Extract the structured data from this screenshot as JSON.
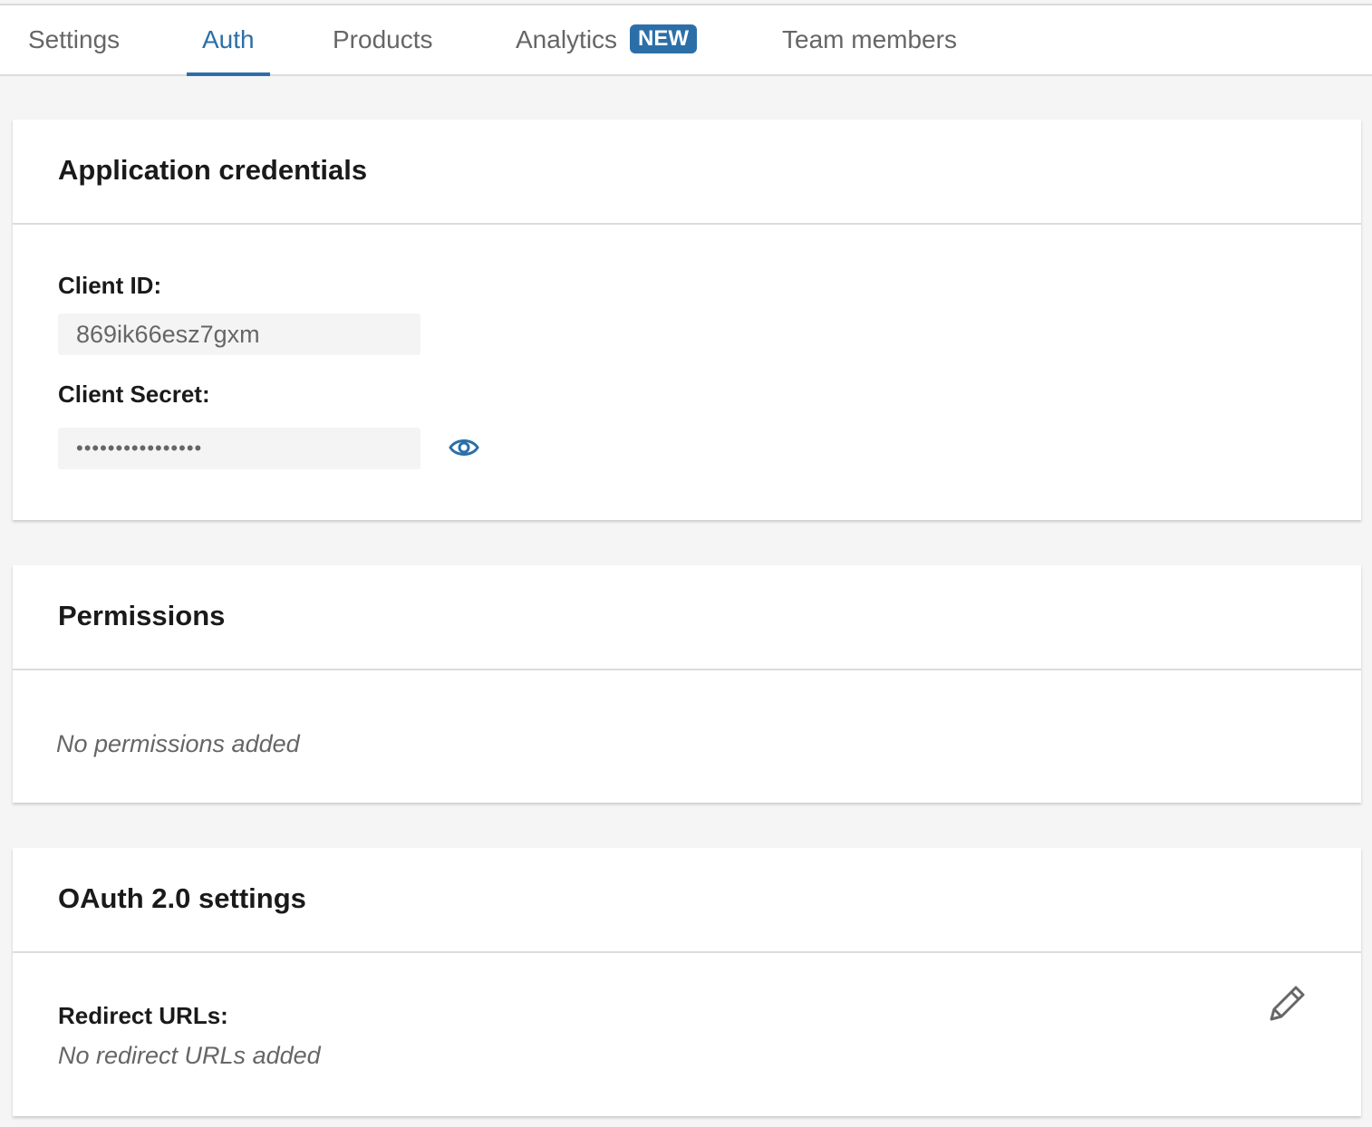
{
  "tabs": [
    {
      "label": "Settings"
    },
    {
      "label": "Auth",
      "active": true
    },
    {
      "label": "Products"
    },
    {
      "label": "Analytics",
      "badge": "NEW"
    },
    {
      "label": "Team members"
    }
  ],
  "credentials": {
    "title": "Application credentials",
    "client_id_label": "Client ID:",
    "client_id_value": "869ik66esz7gxm",
    "client_secret_label": "Client Secret:",
    "client_secret_value": "••••••••••••••••",
    "reveal_icon": "eye-icon"
  },
  "permissions": {
    "title": "Permissions",
    "empty_text": "No permissions added"
  },
  "oauth": {
    "title": "OAuth 2.0 settings",
    "redirect_label": "Redirect URLs:",
    "redirect_empty": "No redirect URLs added",
    "edit_icon": "pencil-icon"
  },
  "colors": {
    "accent": "#2c6fa8",
    "background": "#f5f5f5"
  }
}
